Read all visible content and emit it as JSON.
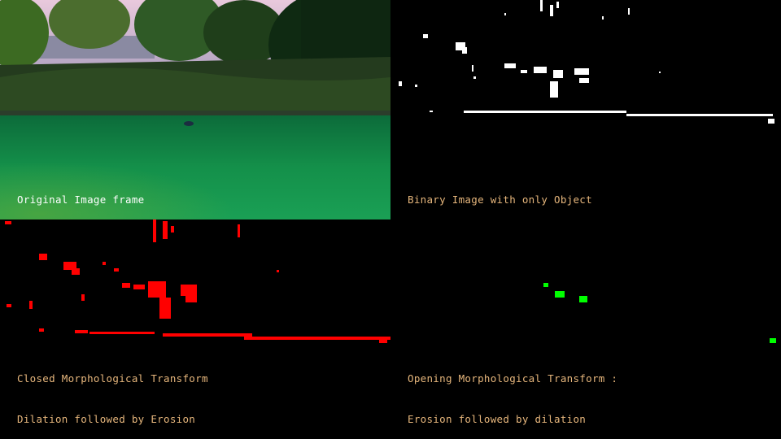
{
  "colors": {
    "orig_label": "#ffffff",
    "label_tan": "#e6b67c",
    "binary_mask": "#ffffff",
    "closed_mask": "#ff0000",
    "opened_mask": "#00ff00"
  },
  "panels": {
    "original": {
      "label": "Original Image frame"
    },
    "binary": {
      "label": "Binary Image with only Object"
    },
    "closed": {
      "label": "Closed Morphological Transform",
      "sublabel": "Dilation followed by Erosion"
    },
    "opened": {
      "label": "Opening Morphological Transform :",
      "sublabel": "Erosion followed by dilation"
    }
  }
}
